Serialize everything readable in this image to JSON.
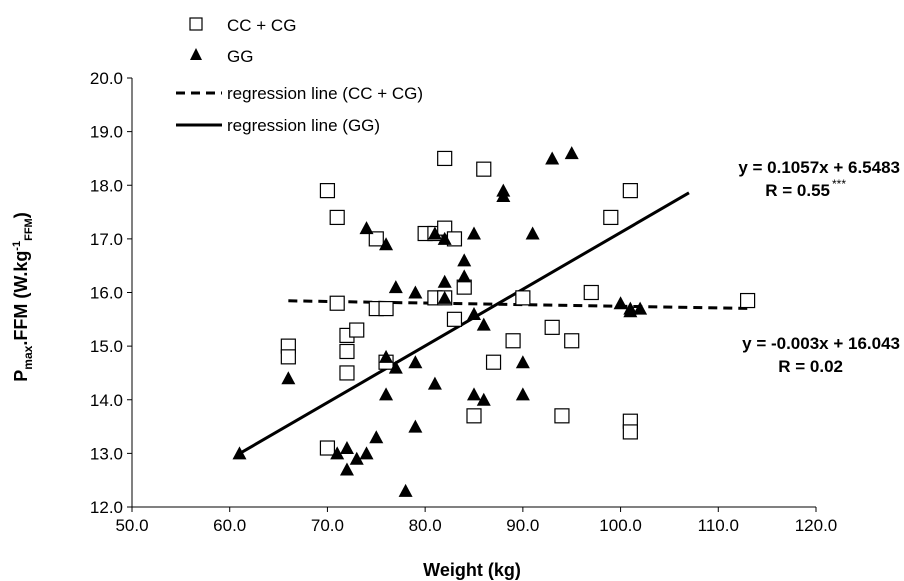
{
  "chart_data": {
    "type": "scatter",
    "xlabel": "Weight (kg)",
    "ylabel": {
      "main": "P",
      "sub1": "max",
      "mid": ".FFM (W.kg",
      "sup": "-1",
      "sub2": "FFM",
      "end": ")"
    },
    "xlim": [
      50,
      120
    ],
    "ylim": [
      12,
      20
    ],
    "xticks": [
      "50.0",
      "60.0",
      "70.0",
      "80.0",
      "90.0",
      "100.0",
      "110.0",
      "120.0"
    ],
    "yticks": [
      "12.0",
      "13.0",
      "14.0",
      "15.0",
      "16.0",
      "17.0",
      "18.0",
      "19.0",
      "20.0"
    ],
    "grid": false,
    "legend_position": "top-left",
    "series": [
      {
        "name": "CC + CG",
        "marker": "open-square",
        "color": "#000000",
        "points": [
          [
            66,
            15.0
          ],
          [
            66,
            14.8
          ],
          [
            70,
            17.9
          ],
          [
            70,
            13.1
          ],
          [
            71,
            17.4
          ],
          [
            71,
            15.8
          ],
          [
            72,
            15.2
          ],
          [
            72,
            14.9
          ],
          [
            72,
            14.5
          ],
          [
            73,
            15.3
          ],
          [
            75,
            17.0
          ],
          [
            75,
            15.7
          ],
          [
            76,
            15.7
          ],
          [
            76,
            14.7
          ],
          [
            80,
            17.1
          ],
          [
            81,
            17.1
          ],
          [
            81,
            15.9
          ],
          [
            82,
            18.5
          ],
          [
            82,
            17.2
          ],
          [
            82,
            15.9
          ],
          [
            83,
            17.0
          ],
          [
            83,
            15.5
          ],
          [
            84,
            16.1
          ],
          [
            85,
            13.7
          ],
          [
            86,
            18.3
          ],
          [
            87,
            14.7
          ],
          [
            89,
            15.1
          ],
          [
            90,
            15.9
          ],
          [
            93,
            15.35
          ],
          [
            94,
            13.7
          ],
          [
            95,
            15.1
          ],
          [
            97,
            16.0
          ],
          [
            99,
            17.4
          ],
          [
            101,
            17.9
          ],
          [
            101,
            13.6
          ],
          [
            101,
            13.4
          ],
          [
            113,
            15.85
          ]
        ]
      },
      {
        "name": "GG",
        "marker": "filled-triangle",
        "color": "#000000",
        "points": [
          [
            61,
            13.0
          ],
          [
            66,
            14.4
          ],
          [
            71,
            13.0
          ],
          [
            72,
            13.1
          ],
          [
            72,
            12.7
          ],
          [
            73,
            12.9
          ],
          [
            74,
            13.0
          ],
          [
            74,
            17.2
          ],
          [
            75,
            13.3
          ],
          [
            76,
            16.9
          ],
          [
            76,
            14.8
          ],
          [
            76,
            14.1
          ],
          [
            77,
            16.1
          ],
          [
            77,
            14.6
          ],
          [
            78,
            12.3
          ],
          [
            79,
            16.0
          ],
          [
            79,
            14.7
          ],
          [
            79,
            13.5
          ],
          [
            81,
            17.1
          ],
          [
            81,
            14.3
          ],
          [
            82,
            17.0
          ],
          [
            82,
            16.2
          ],
          [
            82,
            15.9
          ],
          [
            84,
            16.6
          ],
          [
            84,
            16.3
          ],
          [
            85,
            17.1
          ],
          [
            85,
            15.6
          ],
          [
            85,
            14.1
          ],
          [
            86,
            15.4
          ],
          [
            86,
            14.0
          ],
          [
            88,
            17.9
          ],
          [
            88,
            17.8
          ],
          [
            90,
            14.7
          ],
          [
            90,
            14.1
          ],
          [
            91,
            17.1
          ],
          [
            93,
            18.5
          ],
          [
            95,
            18.6
          ],
          [
            100,
            15.8
          ],
          [
            101,
            15.7
          ],
          [
            101,
            15.65
          ],
          [
            102,
            15.7
          ]
        ]
      }
    ],
    "regression_lines": [
      {
        "name": "regression line (CC + CG)",
        "style": "dashed",
        "slope": -0.003,
        "intercept": 16.043,
        "x_range": [
          66,
          113
        ]
      },
      {
        "name": "regression line (GG)",
        "style": "solid",
        "slope": 0.1057,
        "intercept": 6.5483,
        "x_range": [
          61,
          107
        ]
      }
    ],
    "annotations": [
      {
        "line1": "y = 0.1057x + 6.5483",
        "line2_main": "R = 0.55",
        "line2_sup": "***"
      },
      {
        "line1": "y = -0.003x + 16.043",
        "line2_main": "R = 0.02",
        "line2_sup": ""
      }
    ]
  }
}
